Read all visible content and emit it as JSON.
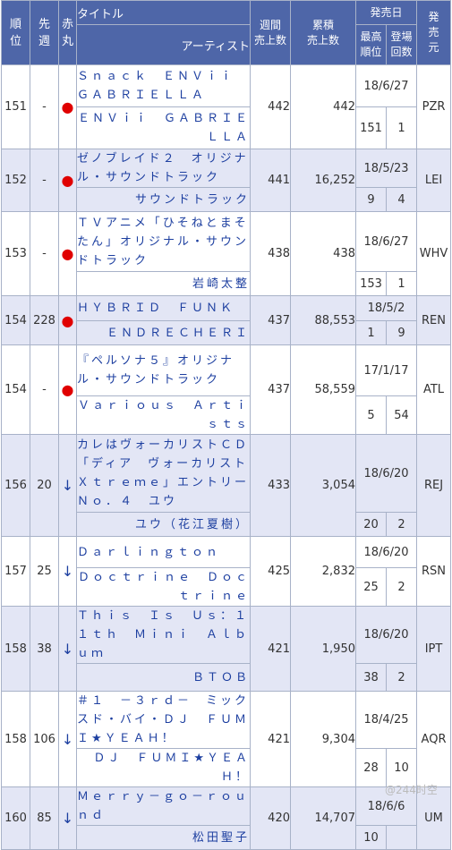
{
  "headers": {
    "rank": "順位",
    "last_week": "先週",
    "akamaru": "赤丸",
    "title": "タイトル",
    "artist": "アーティスト",
    "weekly": "週間売上数",
    "weekly_l1": "週間",
    "weekly_l2": "売上数",
    "total_l1": "累積",
    "total_l2": "売上数",
    "release": "発売日",
    "peak_l1": "最高",
    "peak_l2": "順位",
    "weeks_l1": "登場",
    "weeks_l2": "回数",
    "label": "発売元"
  },
  "rows": [
    {
      "rank": "151",
      "last": "-",
      "mark": "●",
      "title": "Ｓｎａｃｋ　ＥＮＶｉｉ　ＧＡＢＲＩＥＬＬＡ",
      "artist": "ＥＮＶｉｉ　ＧＡＢＲＩＥＬＬＡ",
      "weekly": "442",
      "total": "442",
      "date": "18/6/27",
      "peak": "151",
      "weeks": "1",
      "label": "PZR"
    },
    {
      "rank": "152",
      "last": "-",
      "mark": "●",
      "title": "ゼノブレイド２　オリジナル・サウンドトラック",
      "artist": "サウンドトラック",
      "weekly": "441",
      "total": "16,252",
      "date": "18/5/23",
      "peak": "9",
      "weeks": "4",
      "label": "LEI"
    },
    {
      "rank": "153",
      "last": "-",
      "mark": "●",
      "title": "ＴＶアニメ「ひそねとまそたん」オリジナル・サウンドトラック",
      "artist": "岩崎太整",
      "weekly": "438",
      "total": "438",
      "date": "18/6/27",
      "peak": "153",
      "weeks": "1",
      "label": "WHV"
    },
    {
      "rank": "154",
      "last": "228",
      "mark": "●",
      "title": "ＨＹＢＲＩＤ　ＦＵＮＫ",
      "artist": "ＥＮＤＲＥＣＨＥＲＩ",
      "weekly": "437",
      "total": "88,553",
      "date": "18/5/2",
      "peak": "1",
      "weeks": "9",
      "label": "REN"
    },
    {
      "rank": "154",
      "last": "-",
      "mark": "●",
      "title": "『ペルソナ５』オリジナル・サウンドトラック",
      "artist": "Ｖａｒｉｏｕｓ　Ａｒｔｉｓｔｓ",
      "weekly": "437",
      "total": "58,559",
      "date": "17/1/17",
      "peak": "5",
      "weeks": "54",
      "label": "ATL"
    },
    {
      "rank": "156",
      "last": "20",
      "mark": "↓",
      "title": "カレはヴォーカリストＣＤ「ディア　ヴォーカリスト　Ｘｔｒｅｍｅ」エントリーＮｏ．４　ユウ",
      "artist": "ユウ（花江夏樹）",
      "weekly": "433",
      "total": "3,054",
      "date": "18/6/20",
      "peak": "20",
      "weeks": "2",
      "label": "REJ"
    },
    {
      "rank": "157",
      "last": "25",
      "mark": "↓",
      "title": "Ｄａｒｌｉｎｇｔｏｎ",
      "artist": "Ｄｏｃｔｒｉｎｅ　Ｄｏｃｔｒｉｎｅ",
      "weekly": "425",
      "total": "2,832",
      "date": "18/6/20",
      "peak": "25",
      "weeks": "2",
      "label": "RSN"
    },
    {
      "rank": "158",
      "last": "38",
      "mark": "↓",
      "title": "Ｔｈｉｓ　Ｉｓ　Ｕｓ：１１ｔｈ　Ｍｉｎｉ　Ａｌｂｕｍ",
      "artist": "ＢＴＯＢ",
      "weekly": "421",
      "total": "1,950",
      "date": "18/6/20",
      "peak": "38",
      "weeks": "2",
      "label": "IPT"
    },
    {
      "rank": "158",
      "last": "106",
      "mark": "↓",
      "title": "＃１　－３ｒｄ－　ミックスド・バイ・ＤＪ　ＦＵＭＩ★ＹＥＡＨ！",
      "artist": "ＤＪ　ＦＵＭＩ★ＹＥＡＨ！",
      "weekly": "421",
      "total": "9,304",
      "date": "18/4/25",
      "peak": "28",
      "weeks": "10",
      "label": "AQR"
    },
    {
      "rank": "160",
      "last": "85",
      "mark": "↓",
      "title": "Ｍｅｒｒｙ－ｇｏ－ｒｏｕｎｄ",
      "artist": "松田聖子",
      "weekly": "420",
      "total": "14,707",
      "date": "18/6/6",
      "peak": "10",
      "weeks": "",
      "label": "UM"
    }
  ],
  "watermark": "@244时空"
}
